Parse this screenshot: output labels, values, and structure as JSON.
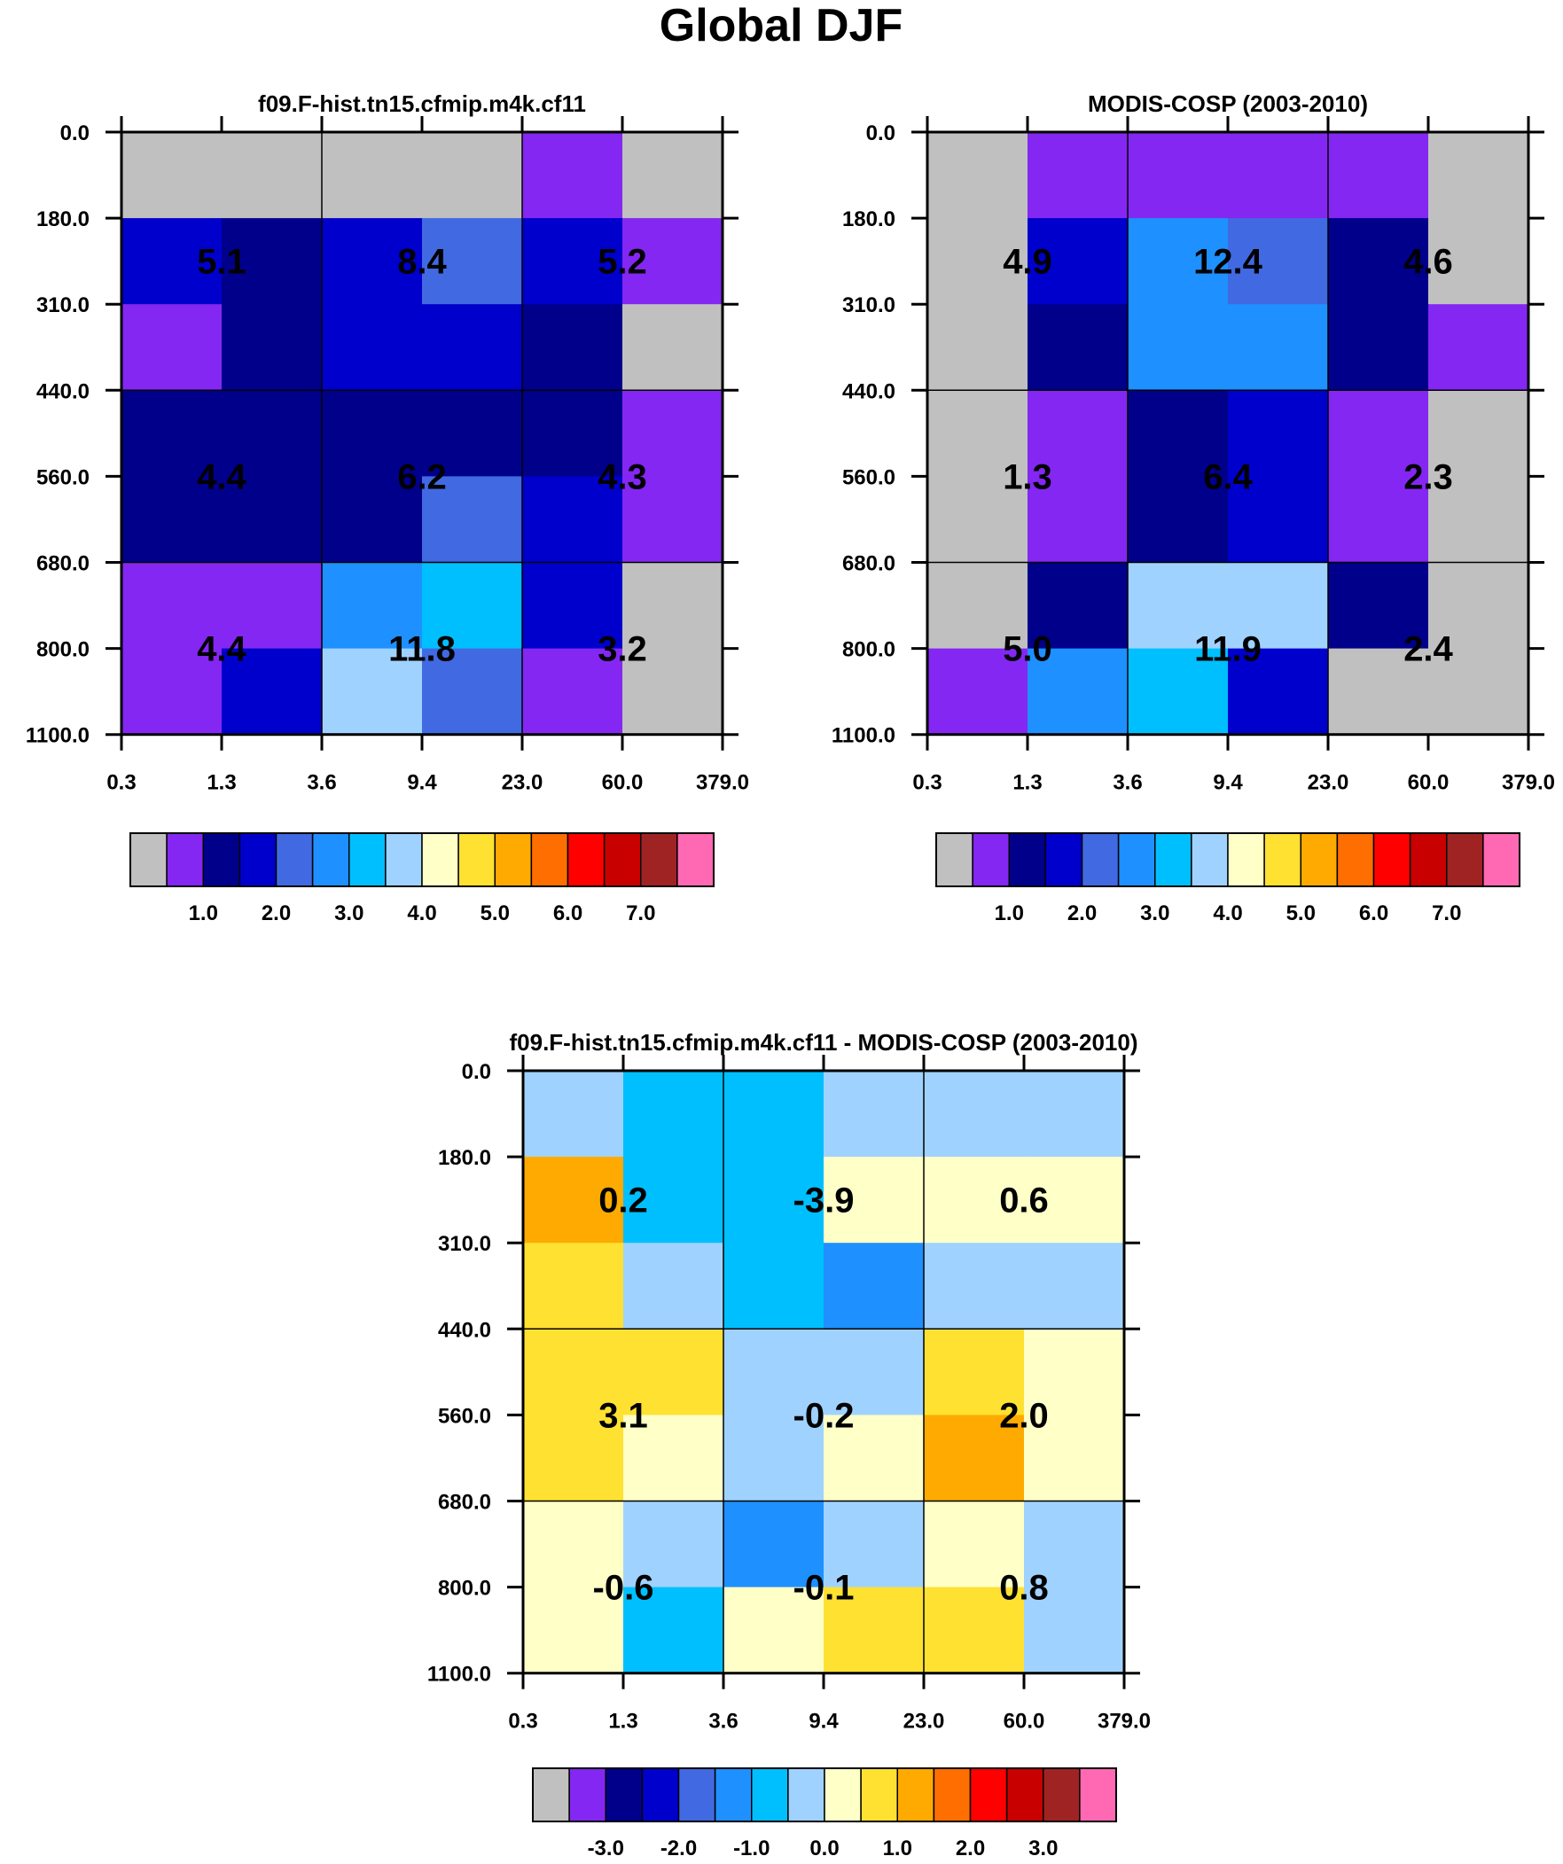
{
  "figure_title": "Global DJF",
  "palette": [
    "#c0c0c0",
    "#8427f2",
    "#00008b",
    "#0000cd",
    "#4169e1",
    "#1e90ff",
    "#00bfff",
    "#a0d2ff",
    "#ffffc8",
    "#ffe132",
    "#ffaa00",
    "#ff6e00",
    "#ff0000",
    "#c80000",
    "#a02323",
    "#ff69b4"
  ],
  "chart_data": [
    {
      "type": "heatmap",
      "title": "f09.F-hist.tn15.cfmip.m4k.cf11",
      "x_ticks": [
        "0.3",
        "1.3",
        "3.6",
        "9.4",
        "23.0",
        "60.0",
        "379.0"
      ],
      "y_ticks": [
        "0.0",
        "180.0",
        "310.0",
        "440.0",
        "560.0",
        "680.0",
        "800.0",
        "1100.0"
      ],
      "cell_color_index": [
        [
          0,
          0,
          0,
          0,
          1,
          0
        ],
        [
          3,
          2,
          3,
          4,
          3,
          1
        ],
        [
          1,
          2,
          3,
          3,
          2,
          0
        ],
        [
          2,
          2,
          2,
          2,
          2,
          1
        ],
        [
          2,
          2,
          2,
          4,
          3,
          1
        ],
        [
          1,
          1,
          5,
          6,
          3,
          0
        ],
        [
          1,
          3,
          7,
          4,
          1,
          0
        ]
      ],
      "block_labels": [
        [
          "5.1",
          "8.4",
          "5.2"
        ],
        [
          "4.4",
          "6.2",
          "4.3"
        ],
        [
          "4.4",
          "11.8",
          "3.2"
        ]
      ],
      "colorbar": {
        "labels": [
          "1.0",
          "2.0",
          "3.0",
          "4.0",
          "5.0",
          "6.0",
          "7.0"
        ]
      }
    },
    {
      "type": "heatmap",
      "title": "MODIS-COSP (2003-2010)",
      "x_ticks": [
        "0.3",
        "1.3",
        "3.6",
        "9.4",
        "23.0",
        "60.0",
        "379.0"
      ],
      "y_ticks": [
        "0.0",
        "180.0",
        "310.0",
        "440.0",
        "560.0",
        "680.0",
        "800.0",
        "1100.0"
      ],
      "cell_color_index": [
        [
          0,
          1,
          1,
          1,
          1,
          0
        ],
        [
          0,
          3,
          5,
          4,
          2,
          0
        ],
        [
          0,
          2,
          5,
          5,
          2,
          1
        ],
        [
          0,
          1,
          2,
          3,
          1,
          0
        ],
        [
          0,
          1,
          2,
          3,
          1,
          0
        ],
        [
          0,
          2,
          7,
          7,
          2,
          0
        ],
        [
          1,
          5,
          6,
          3,
          0,
          0
        ]
      ],
      "block_labels": [
        [
          "4.9",
          "12.4",
          "4.6"
        ],
        [
          "1.3",
          "6.4",
          "2.3"
        ],
        [
          "5.0",
          "11.9",
          "2.4"
        ]
      ],
      "colorbar": {
        "labels": [
          "1.0",
          "2.0",
          "3.0",
          "4.0",
          "5.0",
          "6.0",
          "7.0"
        ]
      }
    },
    {
      "type": "heatmap",
      "title": "f09.F-hist.tn15.cfmip.m4k.cf11 - MODIS-COSP (2003-2010)",
      "x_ticks": [
        "0.3",
        "1.3",
        "3.6",
        "9.4",
        "23.0",
        "60.0",
        "379.0"
      ],
      "y_ticks": [
        "0.0",
        "180.0",
        "310.0",
        "440.0",
        "560.0",
        "680.0",
        "800.0",
        "1100.0"
      ],
      "cell_color_index": [
        [
          7,
          6,
          6,
          7,
          7,
          7
        ],
        [
          10,
          6,
          6,
          8,
          8,
          8
        ],
        [
          9,
          7,
          6,
          5,
          7,
          7
        ],
        [
          9,
          9,
          7,
          7,
          9,
          8
        ],
        [
          9,
          8,
          7,
          8,
          10,
          8
        ],
        [
          8,
          7,
          5,
          7,
          8,
          7
        ],
        [
          8,
          6,
          8,
          9,
          9,
          7
        ]
      ],
      "block_labels": [
        [
          "0.2",
          "-3.9",
          "0.6"
        ],
        [
          "3.1",
          "-0.2",
          "2.0"
        ],
        [
          "-0.6",
          "-0.1",
          "0.8"
        ]
      ],
      "colorbar": {
        "labels": [
          "-3.0",
          "-2.0",
          "-1.0",
          "0.0",
          "1.0",
          "2.0",
          "3.0"
        ]
      }
    }
  ]
}
